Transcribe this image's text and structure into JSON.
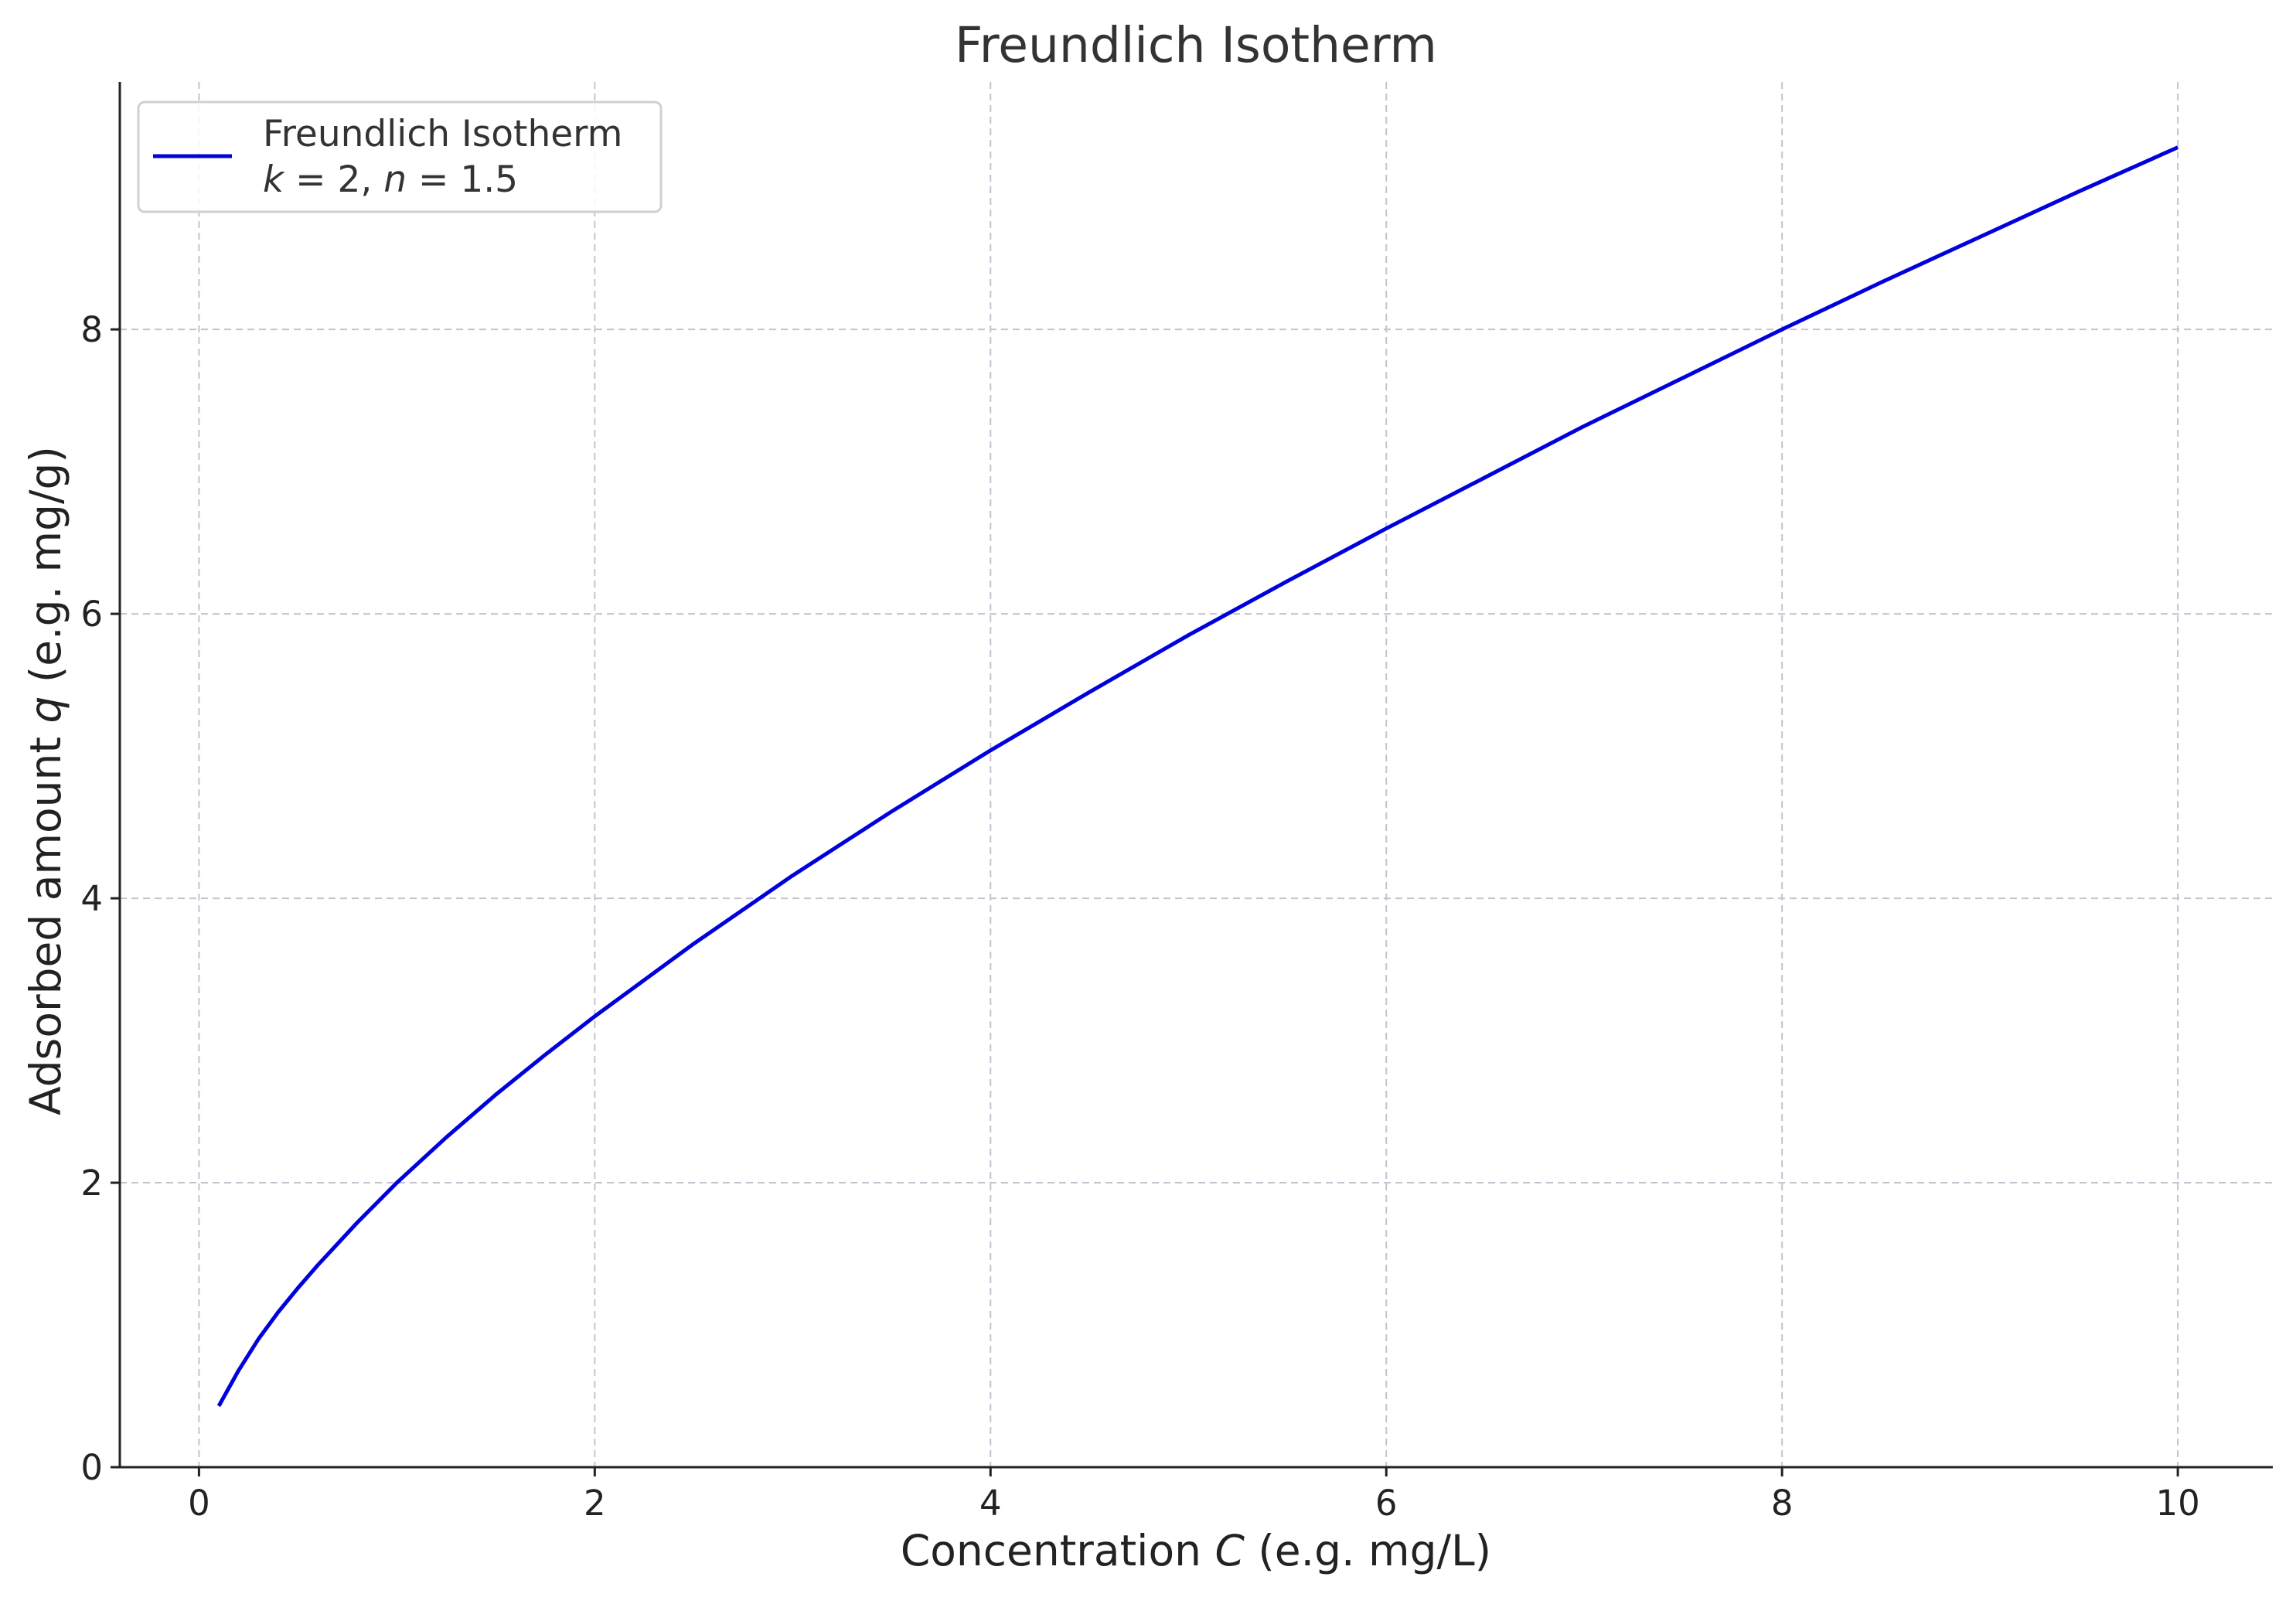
{
  "chart_data": {
    "type": "line",
    "title": "Freundlich Isotherm",
    "xlabel": "Concentration C (e.g. mg/L)",
    "xlabel_parts": {
      "before": "Concentration ",
      "italic": "C",
      "after": " (e.g. mg/L)"
    },
    "ylabel": "Adsorbed amount q (e.g. mg/g)",
    "ylabel_parts": {
      "before": "Adsorbed amount ",
      "italic": "q",
      "after": " (e.g. mg/g)"
    },
    "xlim": [
      -0.4,
      10.48
    ],
    "ylim": [
      0,
      9.74
    ],
    "x_ticks": [
      0,
      2,
      4,
      6,
      8,
      10
    ],
    "x_tick_labels": [
      "0",
      "2",
      "4",
      "6",
      "8",
      "10"
    ],
    "y_ticks": [
      0,
      2,
      4,
      6,
      8
    ],
    "y_tick_labels": [
      "0",
      "2",
      "4",
      "6",
      "8"
    ],
    "grid": true,
    "legend": {
      "placement": "top-left",
      "line1": "Freundlich Isotherm",
      "line2": {
        "k_sym": "k",
        "k_val": " = 2, ",
        "n_sym": "n",
        "n_val": " = 1.5"
      }
    },
    "series": [
      {
        "name": "Freundlich Isotherm k = 2, n = 1.5",
        "color": "#0000dd",
        "x": [
          0.1,
          0.2,
          0.3,
          0.4,
          0.5,
          0.6,
          0.8,
          1.0,
          1.25,
          1.5,
          1.75,
          2.0,
          2.5,
          3.0,
          3.5,
          4.0,
          4.5,
          5.0,
          5.5,
          6.0,
          6.5,
          7.0,
          7.5,
          8.0,
          8.5,
          9.0,
          9.5,
          10.0
        ],
        "y": [
          0.43,
          0.68,
          0.9,
          1.09,
          1.26,
          1.42,
          1.72,
          2.0,
          2.32,
          2.62,
          2.9,
          3.17,
          3.68,
          4.16,
          4.61,
          5.04,
          5.45,
          5.85,
          6.23,
          6.6,
          6.96,
          7.32,
          7.66,
          8.0,
          8.33,
          8.65,
          8.97,
          9.28
        ]
      }
    ]
  }
}
